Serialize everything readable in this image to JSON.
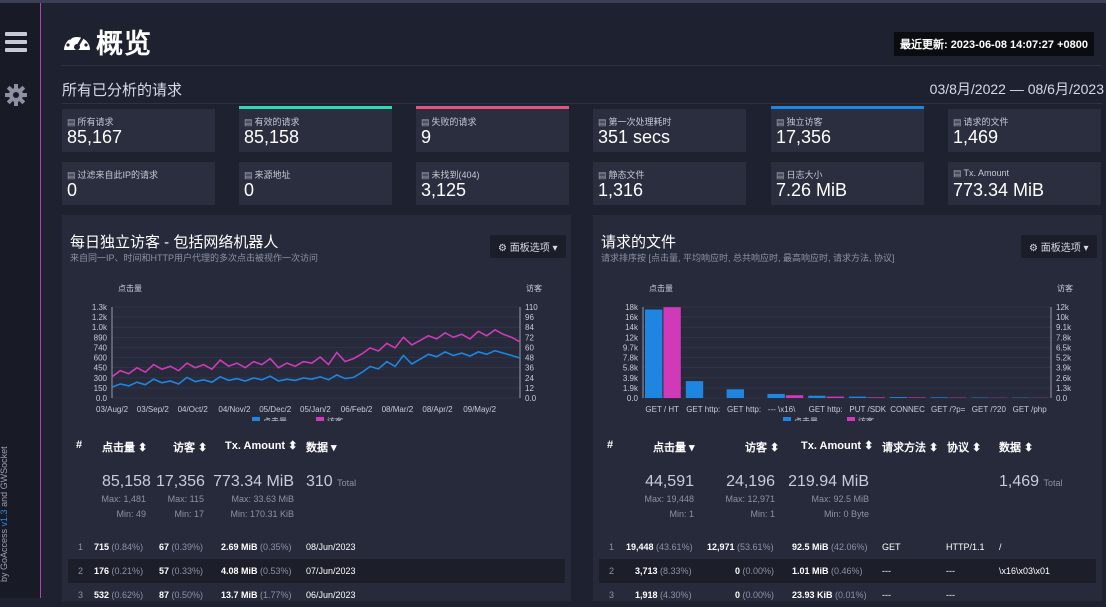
{
  "header": {
    "title": "概览",
    "last_updated_label": "最近更新:",
    "last_updated": "2023-06-08 14:07:27 +0800"
  },
  "subheader": {
    "title": "所有已分析的请求",
    "date_range": "03/8月/2022 — 08/6月/2023"
  },
  "sidebar": {
    "footer_prefix": "by GoAccess",
    "version": "v1.3",
    "footer_suffix": "and GWSocket"
  },
  "colors": {
    "accent_teal": "#2fd7b4",
    "accent_pink": "#e0557a",
    "accent_blue": "#1e86e0",
    "hits_blue": "#1e86e0",
    "visitors_magenta": "#d03ab9"
  },
  "stats": [
    {
      "label": "所有请求",
      "value": "85,167"
    },
    {
      "label": "有效的请求",
      "value": "85,158"
    },
    {
      "label": "失败的请求",
      "value": "9"
    },
    {
      "label": "第一次处理耗时",
      "value": "351 secs"
    },
    {
      "label": "独立访客",
      "value": "17,356"
    },
    {
      "label": "请求的文件",
      "value": "1,469"
    },
    {
      "label": "过滤来自此IP的请求",
      "value": "0"
    },
    {
      "label": "来源地址",
      "value": "0"
    },
    {
      "label": "未找到(404)",
      "value": "3,125"
    },
    {
      "label": "静态文件",
      "value": "1,316"
    },
    {
      "label": "日志大小",
      "value": "7.26 MiB"
    },
    {
      "label": "Tx. Amount",
      "value": "773.34 MiB"
    }
  ],
  "visitors_panel": {
    "title": "每日独立访客 - 包括网络机器人",
    "description": "来自同一IP、时间和HTTP用户代理的多次点击被视作一次访问",
    "options_button": "面板选项",
    "columns": [
      "#",
      "点击量",
      "访客",
      "Tx. Amount",
      "数据"
    ],
    "summary": {
      "hits": "85,158",
      "visitors": "17,356",
      "tx": "773.34 MiB",
      "data": "310",
      "data_suffix": "Total",
      "hits_max": "Max: 1,481",
      "hits_min": "Min: 49",
      "visitors_max": "Max: 115",
      "visitors_min": "Min: 17",
      "tx_max": "Max: 33.63 MiB",
      "tx_min": "Min: 170.31 KiB"
    },
    "rows": [
      {
        "idx": "1",
        "hits": "715",
        "hits_pct": "(0.84%)",
        "visitors": "67",
        "visitors_pct": "(0.39%)",
        "tx": "2.69 MiB",
        "tx_pct": "(0.35%)",
        "data": "08/Jun/2023"
      },
      {
        "idx": "2",
        "hits": "176",
        "hits_pct": "(0.21%)",
        "visitors": "57",
        "visitors_pct": "(0.33%)",
        "tx": "4.08 MiB",
        "tx_pct": "(0.53%)",
        "data": "07/Jun/2023"
      },
      {
        "idx": "3",
        "hits": "532",
        "hits_pct": "(0.62%)",
        "visitors": "87",
        "visitors_pct": "(0.50%)",
        "tx": "13.7 MiB",
        "tx_pct": "(1.77%)",
        "data": "06/Jun/2023"
      }
    ]
  },
  "files_panel": {
    "title": "请求的文件",
    "description": "请求排序按 [点击量, 平均响应时, 总共响应时, 最高响应时, 请求方法, 协议]",
    "options_button": "面板选项",
    "columns": [
      "#",
      "点击量",
      "访客",
      "Tx. Amount",
      "请求方法",
      "协议",
      "数据"
    ],
    "summary": {
      "hits": "44,591",
      "visitors": "24,196",
      "tx": "219.94 MiB",
      "data": "1,469",
      "data_suffix": "Total",
      "hits_max": "Max: 19,448",
      "hits_min": "Min: 1",
      "visitors_max": "Max: 12,971",
      "visitors_min": "Min: 1",
      "tx_max": "Max: 92.5 MiB",
      "tx_min": "Min: 0 Byte"
    },
    "rows": [
      {
        "idx": "1",
        "hits": "19,448",
        "hits_pct": "(43.61%)",
        "visitors": "12,971",
        "visitors_pct": "(53.61%)",
        "tx": "92.5 MiB",
        "tx_pct": "(42.06%)",
        "method": "GET",
        "protocol": "HTTP/1.1",
        "data": "/"
      },
      {
        "idx": "2",
        "hits": "3,713",
        "hits_pct": "(8.33%)",
        "visitors": "0",
        "visitors_pct": "(0.00%)",
        "tx": "1.01 MiB",
        "tx_pct": "(0.46%)",
        "method": "---",
        "protocol": "---",
        "data": "\\x16\\x03\\x01"
      },
      {
        "idx": "3",
        "hits": "1,918",
        "hits_pct": "(4.30%)",
        "visitors": "0",
        "visitors_pct": "(0.00%)",
        "tx": "23.93 KiB",
        "tx_pct": "(0.01%)",
        "method": "---",
        "protocol": "---",
        "data": ""
      }
    ]
  },
  "chart_data": [
    {
      "type": "line",
      "title": "每日独立访客 - 包括网络机器人",
      "ylabel": "点击量",
      "y2label": "访客",
      "ylim": [
        0,
        1500
      ],
      "y2lim": [
        0,
        120
      ],
      "y_ticks": [
        "1.3k",
        "1.2k",
        "1.0k",
        "890",
        "740",
        "600",
        "450",
        "300",
        "150",
        "0.0"
      ],
      "y2_ticks": [
        "110",
        "96",
        "84",
        "72",
        "60",
        "48",
        "36",
        "24",
        "12",
        "0.0"
      ],
      "x_ticks": [
        "03/Aug/2",
        "03/Sep/2",
        "04/Oct/2",
        "04/Nov/2",
        "05/Dec/2",
        "05/Jan/2",
        "06/Feb/2",
        "08/Mar/2",
        "08/Apr/2",
        "09/May/2"
      ],
      "legend": [
        "点击量",
        "访客"
      ],
      "series": [
        {
          "name": "点击量",
          "values": [
            180,
            230,
            200,
            260,
            220,
            310,
            250,
            280,
            230,
            340,
            270,
            300,
            260,
            350,
            290,
            320,
            280,
            330,
            300,
            360,
            280,
            310,
            290,
            330,
            310,
            350,
            300,
            380,
            320,
            340,
            420,
            520,
            480,
            600,
            520,
            700,
            560,
            640,
            720,
            680,
            760,
            700,
            740,
            690,
            760,
            720,
            780,
            740,
            700,
            660
          ]
        },
        {
          "name": "访客",
          "values": [
            28,
            36,
            32,
            40,
            34,
            44,
            38,
            42,
            36,
            46,
            40,
            44,
            38,
            50,
            42,
            46,
            40,
            48,
            44,
            52,
            40,
            46,
            42,
            48,
            46,
            54,
            44,
            60,
            48,
            52,
            58,
            66,
            62,
            72,
            66,
            80,
            70,
            76,
            82,
            78,
            86,
            80,
            84,
            78,
            88,
            82,
            90,
            84,
            80,
            74
          ]
        }
      ]
    },
    {
      "type": "bar",
      "title": "请求的文件",
      "ylabel": "点击量",
      "y2label": "访客",
      "ylim": [
        0,
        20000
      ],
      "y2lim": [
        0,
        13000
      ],
      "y_ticks": [
        "18k",
        "16k",
        "14k",
        "12k",
        "9.7k",
        "7.8k",
        "5.8k",
        "3.9k",
        "1.9k",
        "0.0"
      ],
      "y2_ticks": [
        "12k",
        "10k",
        "9.1k",
        "7.8k",
        "6.5k",
        "5.2k",
        "3.9k",
        "2.6k",
        "1.3k",
        "0.0"
      ],
      "categories": [
        "GET / HT",
        "GET http:",
        "GET http:",
        "--- \\x16\\",
        "GET http:",
        "PUT /SDK",
        "CONNEC",
        "GET /?p=",
        "GET /?20",
        "GET /php"
      ],
      "legend": [
        "点击量",
        "访客"
      ],
      "series": [
        {
          "name": "点击量",
          "values": [
            19448,
            3713,
            1918,
            900,
            500,
            300,
            200,
            150,
            100,
            80
          ]
        },
        {
          "name": "访客",
          "values": [
            12971,
            0,
            0,
            400,
            200,
            100,
            80,
            60,
            40,
            30
          ]
        }
      ]
    }
  ]
}
